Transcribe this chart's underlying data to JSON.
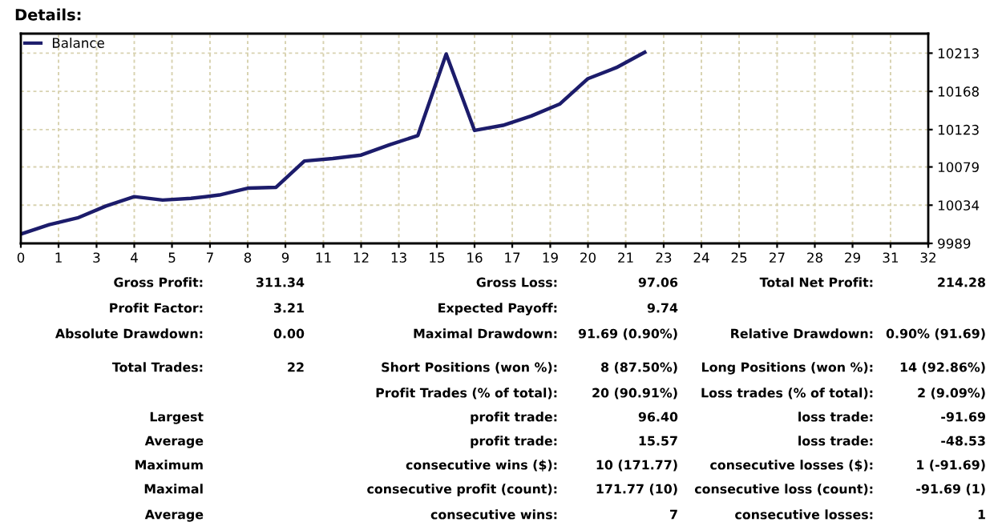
{
  "chart_data": {
    "type": "line",
    "title": "Details:",
    "x": [
      0,
      1,
      2,
      3,
      4,
      5,
      6,
      7,
      8,
      9,
      10,
      11,
      12,
      13,
      14,
      15,
      16,
      17,
      18,
      19,
      20,
      21,
      22
    ],
    "series": [
      {
        "name": "Balance",
        "color": "#1c1c6b",
        "values": [
          10000,
          10011,
          10019,
          10033,
          10044,
          10040,
          10042,
          10046,
          10054,
          10055,
          10086,
          10089,
          10093,
          10105,
          10116,
          10212,
          10122,
          10128,
          10139,
          10153,
          10183,
          10196,
          10214
        ]
      }
    ],
    "xlim": [
      0,
      32
    ],
    "xticks": [
      0,
      {
        "value": 1.33,
        "label": "1"
      },
      {
        "value": 2.67,
        "label": "3"
      },
      4,
      {
        "value": 5.33,
        "label": "5"
      },
      {
        "value": 6.67,
        "label": "7"
      },
      8,
      {
        "value": 9.33,
        "label": "9"
      },
      {
        "value": 10.67,
        "label": "11"
      },
      12,
      {
        "value": 13.33,
        "label": "13"
      },
      {
        "value": 14.67,
        "label": "15"
      },
      16,
      {
        "value": 17.33,
        "label": "17"
      },
      {
        "value": 18.67,
        "label": "19"
      },
      20,
      {
        "value": 21.33,
        "label": "21"
      },
      {
        "value": 22.67,
        "label": "23"
      },
      24,
      {
        "value": 25.33,
        "label": "25"
      },
      {
        "value": 26.67,
        "label": "27"
      },
      28,
      {
        "value": 29.33,
        "label": "29"
      },
      {
        "value": 30.67,
        "label": "31"
      },
      32
    ],
    "ylim": [
      9989,
      10236
    ],
    "yticks": [
      9989,
      10034,
      10079,
      10123,
      10168,
      10213
    ],
    "grid": true,
    "legend": "top left",
    "annotations": [
      "Gross Profit:",
      "311.34",
      "Gross Loss:",
      "97.06",
      "Total Net Profit:",
      "214.28",
      "Profit Factor:",
      "3.21",
      "Expected Payoff:",
      "9.74",
      "Absolute Drawdown:",
      "0.00",
      "Maximal Drawdown:",
      "91.69 (0.90%)",
      "Relative Drawdown:",
      "0.90% (91.69)",
      "Total Trades:",
      "22",
      "Short Positions (won %):",
      "8 (87.50%)",
      "Long Positions (won %):",
      "14 (92.86%)",
      "Profit Trades (% of total):",
      "20 (90.91%)",
      "Loss trades (% of total):",
      "2 (9.09%)",
      "Largest",
      "profit trade:",
      "96.40",
      "loss trade:",
      "-91.69",
      "Average",
      "profit trade:",
      "15.57",
      "loss trade:",
      "-48.53",
      "Maximum",
      "consecutive wins ($):",
      "10 (171.77)",
      "consecutive losses ($):",
      "1 (-91.69)",
      "Maximal",
      "consecutive profit (count):",
      "171.77 (10)",
      "consecutive loss (count):",
      "-91.69 (1)",
      "Average",
      "consecutive wins:",
      "7",
      "consecutive losses:",
      "1"
    ]
  }
}
